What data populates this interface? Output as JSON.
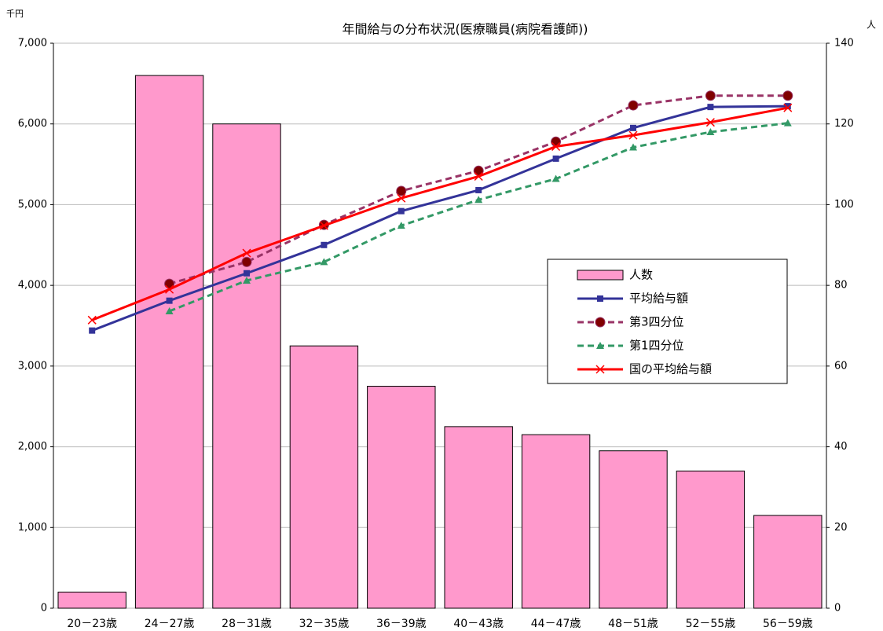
{
  "chart_data": {
    "type": "combo",
    "title": "年間給与の分布状況(医療職員(病院看護師))",
    "y_unit": "千円",
    "y2_unit": "人",
    "categories": [
      "20－23歳",
      "24－27歳",
      "28－31歳",
      "32－35歳",
      "36－39歳",
      "40－43歳",
      "44－47歳",
      "48－51歳",
      "52－55歳",
      "56－59歳"
    ],
    "series": [
      {
        "name": "人数",
        "type": "bar",
        "axis": "y2",
        "color": "#ff99cc",
        "values": [
          4,
          132,
          120,
          65,
          55,
          45,
          43,
          39,
          34,
          23
        ]
      },
      {
        "name": "平均給与額",
        "type": "line",
        "marker": "square",
        "dashed": false,
        "color": "#333399",
        "values": [
          3440,
          3810,
          4150,
          4500,
          4920,
          5180,
          5570,
          5950,
          6210,
          6220
        ]
      },
      {
        "name": "第3四分位",
        "type": "line",
        "marker": "circle",
        "dashed": true,
        "color": "#993366",
        "values": [
          null,
          4020,
          4290,
          4750,
          5170,
          5420,
          5780,
          6230,
          6350,
          6350
        ]
      },
      {
        "name": "第1四分位",
        "type": "line",
        "marker": "triangle",
        "dashed": true,
        "color": "#339966",
        "values": [
          null,
          3680,
          4060,
          4290,
          4740,
          5060,
          5320,
          5710,
          5900,
          6010
        ]
      },
      {
        "name": "国の平均給与額",
        "type": "line",
        "marker": "x",
        "dashed": false,
        "color": "#ff0000",
        "values": [
          3570,
          3950,
          4400,
          4740,
          5080,
          5350,
          5720,
          5860,
          6020,
          6200
        ]
      }
    ],
    "ylim": [
      0,
      7000
    ],
    "yticks": [
      0,
      {
        "value": 1000,
        "label": "1,000"
      },
      {
        "value": 2000,
        "label": "2,000"
      },
      {
        "value": 3000,
        "label": "3,000"
      },
      {
        "value": 4000,
        "label": "4,000"
      },
      {
        "value": 5000,
        "label": "5,000"
      },
      {
        "value": 6000,
        "label": "6,000"
      },
      {
        "value": 7000,
        "label": "7,000"
      }
    ],
    "y2lim": [
      0,
      140
    ],
    "y2ticks": [
      0,
      20,
      40,
      60,
      80,
      100,
      120,
      140
    ],
    "grid": true
  }
}
